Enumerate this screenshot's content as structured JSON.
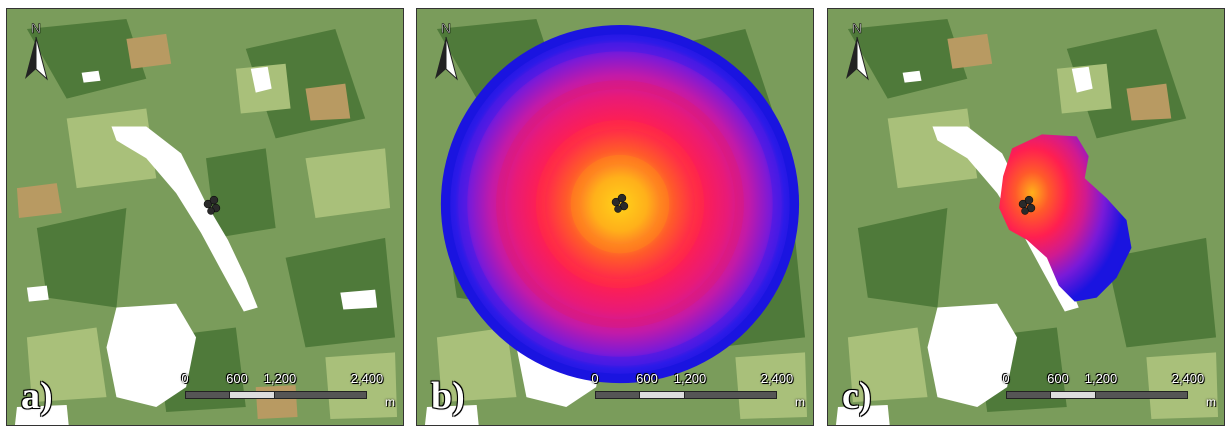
{
  "panels": [
    {
      "id": "a",
      "label": "a)"
    },
    {
      "id": "b",
      "label": "b)"
    },
    {
      "id": "c",
      "label": "c)"
    }
  ],
  "north_label": "N",
  "scale": {
    "ticks": [
      "0",
      "600",
      "1,200",
      "2,400"
    ],
    "unit": "m"
  },
  "colors": {
    "forest_dark": "#4f7a3a",
    "forest_mid": "#7a9c5b",
    "forest_light": "#a9c07a",
    "field": "#b89a62",
    "water": "#ffffff",
    "ring_outer": "#1a14e0",
    "ring_inner": "#ffc21a"
  }
}
